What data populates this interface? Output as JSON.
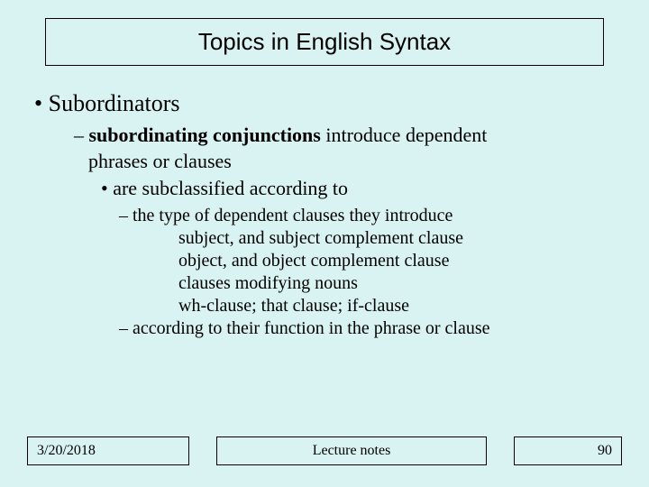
{
  "background_color": "#d9f2f2",
  "title": "Topics in English Syntax",
  "bullets": {
    "l1": "•  Subordinators",
    "l2_dash": "–",
    "l2_strong": "subordinating conjunctions",
    "l2_rest": "  introduce dependent",
    "l2b": "phrases or clauses",
    "l3": "•  are subclassified according to",
    "l4a": "–  the type of dependent clauses they introduce",
    "l5a": "subject, and subject complement clause",
    "l5b": "object, and object complement clause",
    "l5c": "clauses modifying nouns",
    "l5d": "wh-clause; that clause; if-clause",
    "l4b": "–  according to their function in the phrase or clause"
  },
  "footer": {
    "date": "3/20/2018",
    "center": "Lecture notes",
    "page": "90"
  }
}
